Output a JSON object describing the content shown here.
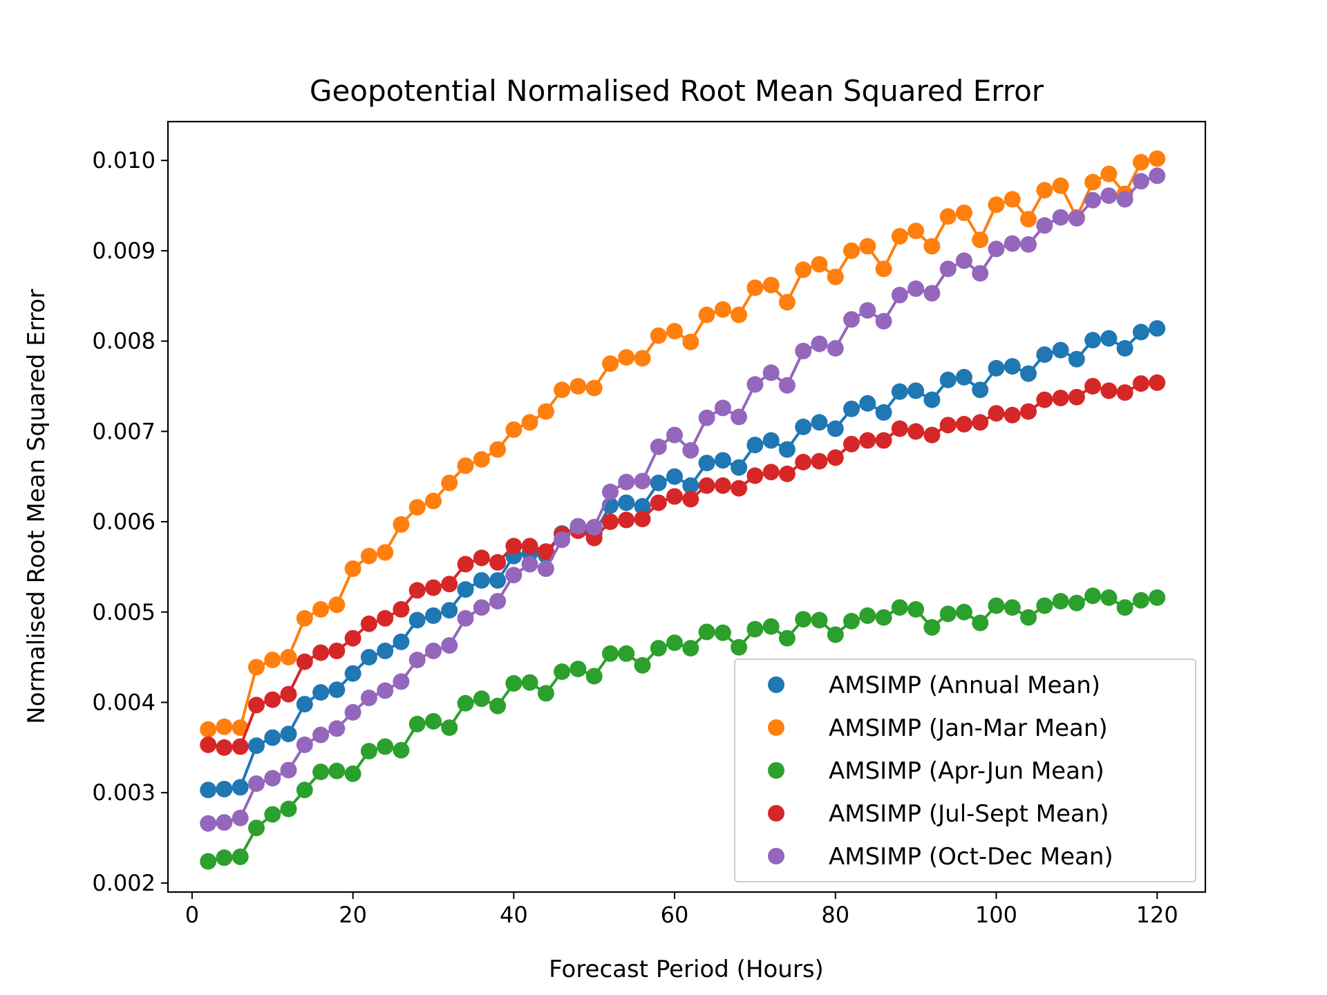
{
  "chart_data": {
    "type": "line",
    "title": "Geopotential Normalised Root Mean Squared Error",
    "xlabel": "Forecast Period (Hours)",
    "ylabel": "Normalised Root Mean Squared Error",
    "xlim": [
      -3,
      126
    ],
    "ylim": [
      0.0019,
      0.01043
    ],
    "xticks": [
      0,
      20,
      40,
      60,
      80,
      100,
      120
    ],
    "yticks": [
      0.002,
      0.003,
      0.004,
      0.005,
      0.006,
      0.007,
      0.008,
      0.009,
      0.01
    ],
    "xtick_labels": [
      "0",
      "20",
      "40",
      "60",
      "80",
      "100",
      "120"
    ],
    "ytick_labels": [
      "0.002",
      "0.003",
      "0.004",
      "0.005",
      "0.006",
      "0.007",
      "0.008",
      "0.009",
      "0.010"
    ],
    "legend_position": "lower-right",
    "grid": false,
    "x": [
      2,
      4,
      6,
      8,
      10,
      12,
      14,
      16,
      18,
      20,
      22,
      24,
      26,
      28,
      30,
      32,
      34,
      36,
      38,
      40,
      42,
      44,
      46,
      48,
      50,
      52,
      54,
      56,
      58,
      60,
      62,
      64,
      66,
      68,
      70,
      72,
      74,
      76,
      78,
      80,
      82,
      84,
      86,
      88,
      90,
      92,
      94,
      96,
      98,
      100,
      102,
      104,
      106,
      108,
      110,
      112,
      114,
      116,
      118,
      120
    ],
    "series": [
      {
        "name": "AMSIMP (Annual Mean)",
        "color": "#1f77b4",
        "values": [
          0.00303,
          0.00304,
          0.00306,
          0.00352,
          0.00361,
          0.00365,
          0.00398,
          0.00411,
          0.00414,
          0.00432,
          0.0045,
          0.00457,
          0.00467,
          0.00491,
          0.00496,
          0.00502,
          0.00525,
          0.00535,
          0.00535,
          0.00562,
          0.00565,
          0.00563,
          0.00587,
          0.00592,
          0.00587,
          0.00618,
          0.00621,
          0.00617,
          0.00643,
          0.0065,
          0.0064,
          0.00665,
          0.00668,
          0.0066,
          0.00685,
          0.0069,
          0.0068,
          0.00705,
          0.0071,
          0.00703,
          0.00725,
          0.00731,
          0.00721,
          0.00744,
          0.00745,
          0.00735,
          0.00757,
          0.0076,
          0.00746,
          0.0077,
          0.00772,
          0.00764,
          0.00785,
          0.0079,
          0.0078,
          0.00801,
          0.00803,
          0.00792,
          0.0081,
          0.00814
        ]
      },
      {
        "name": "AMSIMP (Jan-Mar Mean)",
        "color": "#ff7f0e",
        "values": [
          0.0037,
          0.00373,
          0.00372,
          0.00439,
          0.00447,
          0.0045,
          0.00493,
          0.00503,
          0.00508,
          0.00548,
          0.00562,
          0.00566,
          0.00597,
          0.00616,
          0.00623,
          0.00643,
          0.00662,
          0.00669,
          0.0068,
          0.00702,
          0.0071,
          0.00722,
          0.00746,
          0.0075,
          0.00748,
          0.00775,
          0.00782,
          0.00781,
          0.00806,
          0.00811,
          0.00799,
          0.00829,
          0.00835,
          0.00829,
          0.00859,
          0.00862,
          0.00843,
          0.00879,
          0.00885,
          0.00871,
          0.009,
          0.00905,
          0.0088,
          0.00916,
          0.00922,
          0.00905,
          0.00938,
          0.00942,
          0.00912,
          0.00951,
          0.00957,
          0.00935,
          0.00967,
          0.00972,
          0.00937,
          0.00976,
          0.00985,
          0.00963,
          0.00998,
          0.01002
        ]
      },
      {
        "name": "AMSIMP (Apr-Jun Mean)",
        "color": "#2ca02c",
        "values": [
          0.00224,
          0.00228,
          0.00229,
          0.00261,
          0.00276,
          0.00282,
          0.00303,
          0.00323,
          0.00324,
          0.00321,
          0.00346,
          0.00351,
          0.00347,
          0.00376,
          0.00379,
          0.00372,
          0.00399,
          0.00404,
          0.00396,
          0.00421,
          0.00422,
          0.0041,
          0.00434,
          0.00437,
          0.00429,
          0.00454,
          0.00454,
          0.00441,
          0.0046,
          0.00466,
          0.0046,
          0.00478,
          0.00477,
          0.00461,
          0.00481,
          0.00484,
          0.00471,
          0.00492,
          0.00491,
          0.00475,
          0.0049,
          0.00496,
          0.00494,
          0.00505,
          0.00503,
          0.00483,
          0.00498,
          0.005,
          0.00488,
          0.00507,
          0.00505,
          0.00494,
          0.00507,
          0.00512,
          0.0051,
          0.00518,
          0.00516,
          0.00505,
          0.00513,
          0.00516
        ]
      },
      {
        "name": "AMSIMP (Jul-Sept Mean)",
        "color": "#d62728",
        "values": [
          0.00353,
          0.0035,
          0.00351,
          0.00397,
          0.00403,
          0.00409,
          0.00445,
          0.00455,
          0.00457,
          0.00471,
          0.00487,
          0.00493,
          0.00503,
          0.00524,
          0.00527,
          0.00531,
          0.00553,
          0.0056,
          0.00555,
          0.00573,
          0.00573,
          0.00567,
          0.00586,
          0.0059,
          0.00582,
          0.006,
          0.00602,
          0.00603,
          0.00621,
          0.00628,
          0.00625,
          0.0064,
          0.0064,
          0.00637,
          0.00651,
          0.00655,
          0.00653,
          0.00666,
          0.00667,
          0.00671,
          0.00686,
          0.0069,
          0.0069,
          0.00703,
          0.007,
          0.00696,
          0.00707,
          0.00708,
          0.0071,
          0.0072,
          0.00718,
          0.00722,
          0.00735,
          0.00737,
          0.00738,
          0.0075,
          0.00745,
          0.00743,
          0.00753,
          0.00754
        ]
      },
      {
        "name": "AMSIMP (Oct-Dec Mean)",
        "color": "#9467bd",
        "values": [
          0.00266,
          0.00267,
          0.00272,
          0.0031,
          0.00316,
          0.00325,
          0.00353,
          0.00364,
          0.00371,
          0.00389,
          0.00405,
          0.00413,
          0.00423,
          0.00447,
          0.00457,
          0.00463,
          0.00493,
          0.00505,
          0.00512,
          0.00541,
          0.00553,
          0.00548,
          0.0058,
          0.00595,
          0.00594,
          0.00633,
          0.00644,
          0.00645,
          0.00683,
          0.00696,
          0.00679,
          0.00715,
          0.00726,
          0.00716,
          0.00752,
          0.00765,
          0.00751,
          0.00789,
          0.00797,
          0.00792,
          0.00824,
          0.00834,
          0.00822,
          0.00851,
          0.00858,
          0.00853,
          0.0088,
          0.00889,
          0.00875,
          0.00902,
          0.00908,
          0.00907,
          0.00928,
          0.00937,
          0.00936,
          0.00956,
          0.00961,
          0.00957,
          0.00977,
          0.00983
        ]
      }
    ]
  }
}
